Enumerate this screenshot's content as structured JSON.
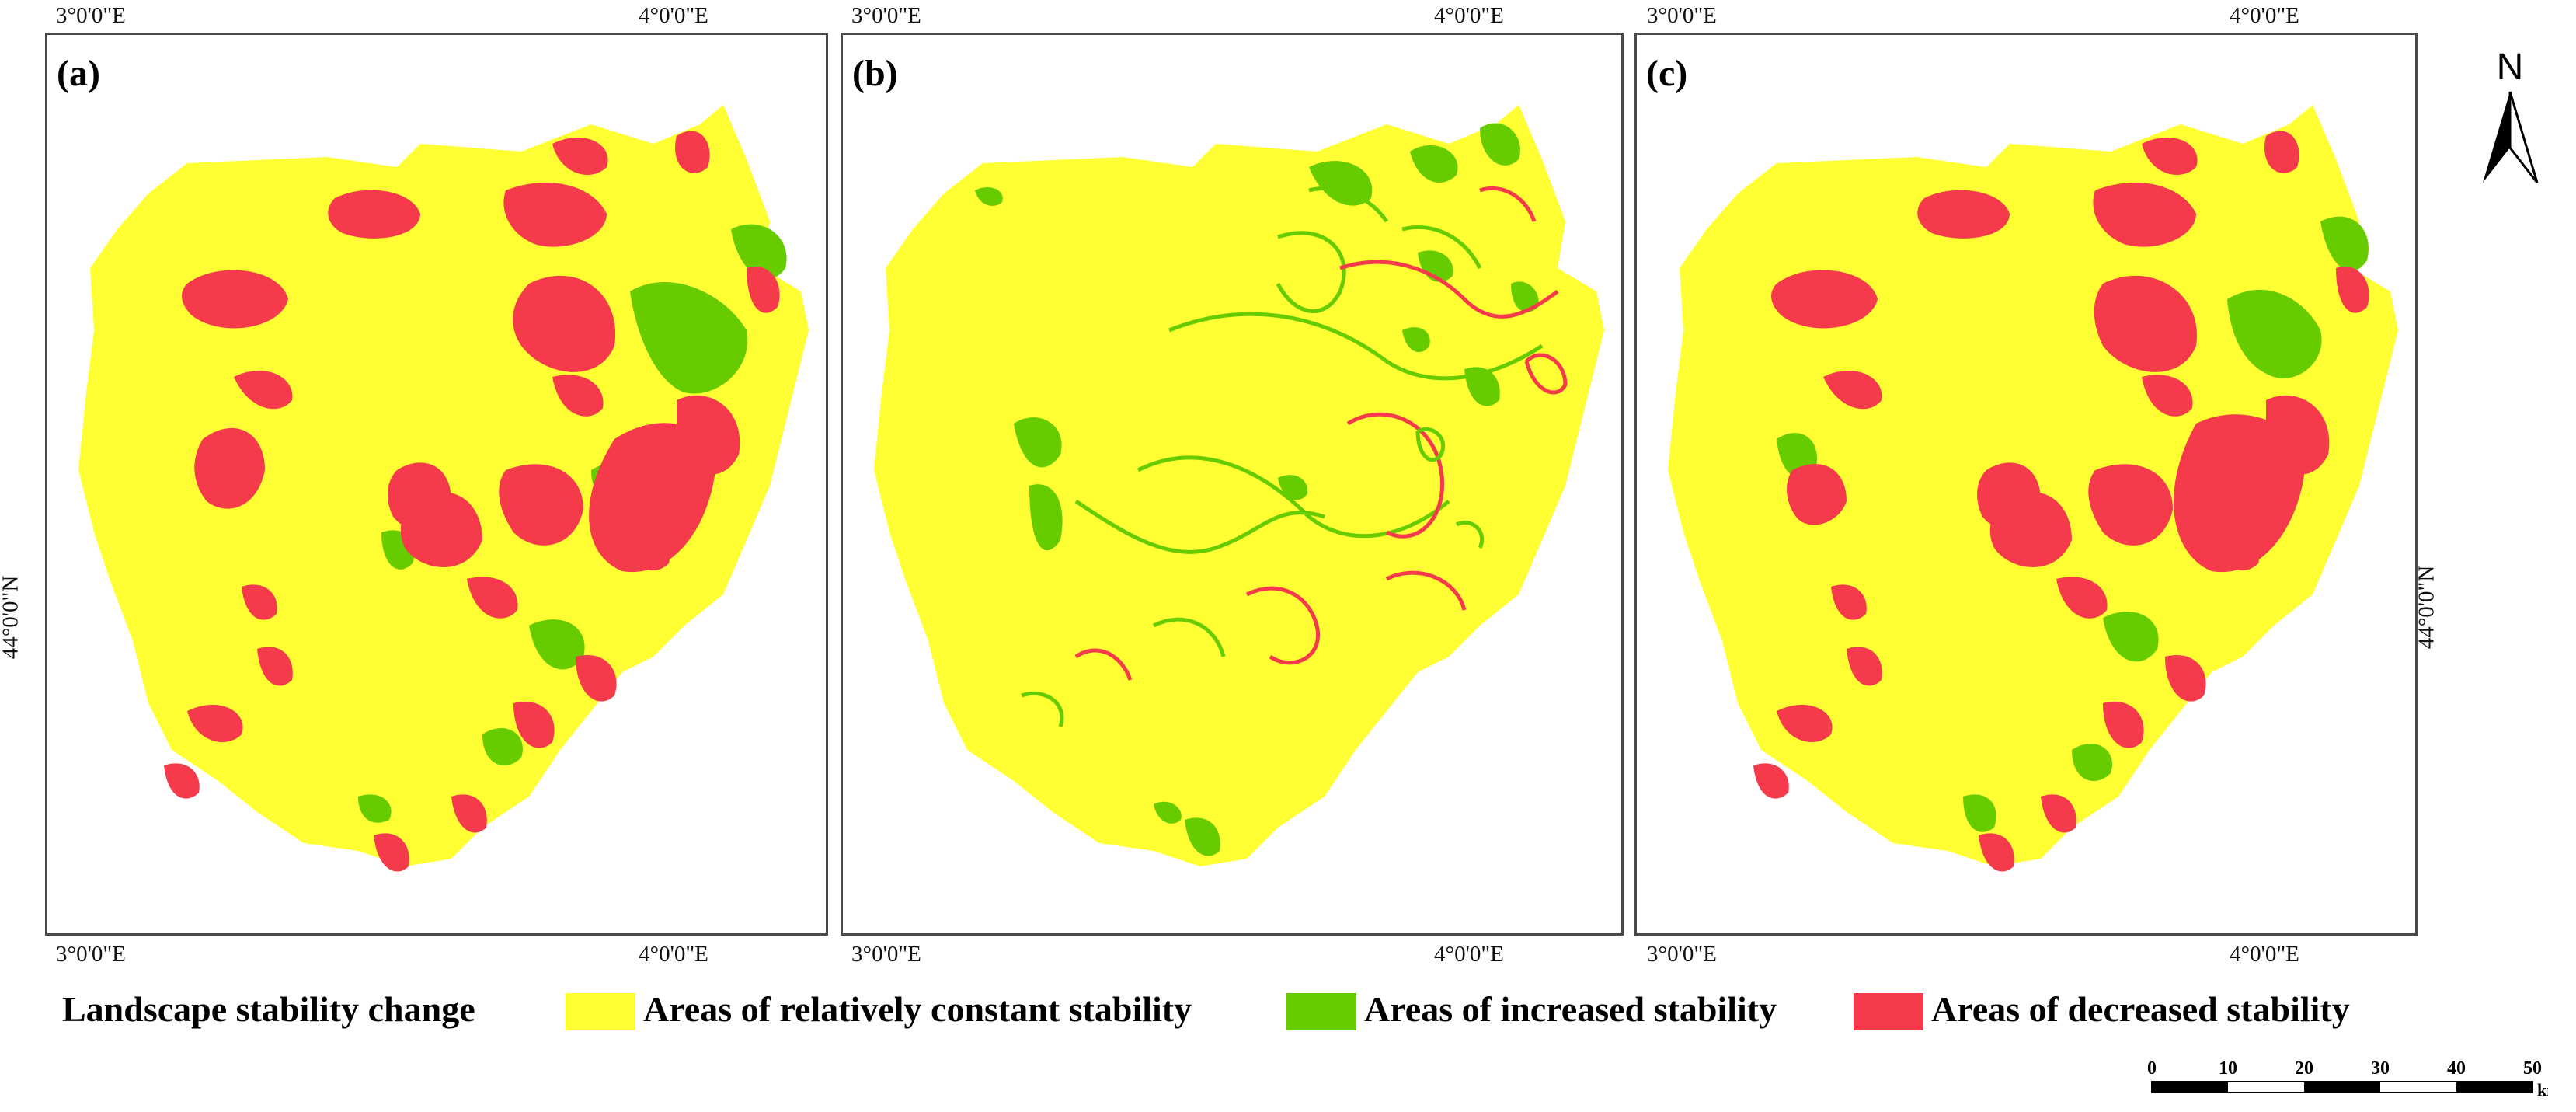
{
  "colors": {
    "constant": "#ffff33",
    "increased": "#66cc00",
    "decreased": "#f53b4b",
    "frame": "#4a4a4a"
  },
  "panels": [
    {
      "label": "(a)",
      "top_lon": [
        "3°0'0\"E",
        "4°0'0\"E"
      ],
      "bottom_lon": [
        "3°0'0\"E",
        "4°0'0\"E"
      ],
      "right_lat": "44°0'0\"N"
    },
    {
      "label": "(b)",
      "top_lon": [
        "3°0'0\"E",
        "4°0'0\"E"
      ],
      "bottom_lon": [
        "3°0'0\"E",
        "4°0'0\"E"
      ],
      "right_lat": "44°0'0\"N"
    },
    {
      "label": "(c)",
      "top_lon": [
        "3°0'0\"E",
        "4°0'0\"E"
      ],
      "bottom_lon": [
        "3°0'0\"E",
        "4°0'0\"E"
      ],
      "right_lat": "44°0'0\"N"
    }
  ],
  "left_lat": "44°0'0\"N",
  "north_label": "N",
  "legend": {
    "title": "Landscape stability change",
    "items": [
      {
        "label": "Areas of relatively constant stability",
        "color": "#ffff33"
      },
      {
        "label": "Areas of increased stability",
        "color": "#66cc00"
      },
      {
        "label": "Areas of decreased stability",
        "color": "#f53b4b"
      }
    ]
  },
  "scale": {
    "ticks": [
      "0",
      "10",
      "20",
      "30",
      "40",
      "50"
    ],
    "unit": "km"
  }
}
